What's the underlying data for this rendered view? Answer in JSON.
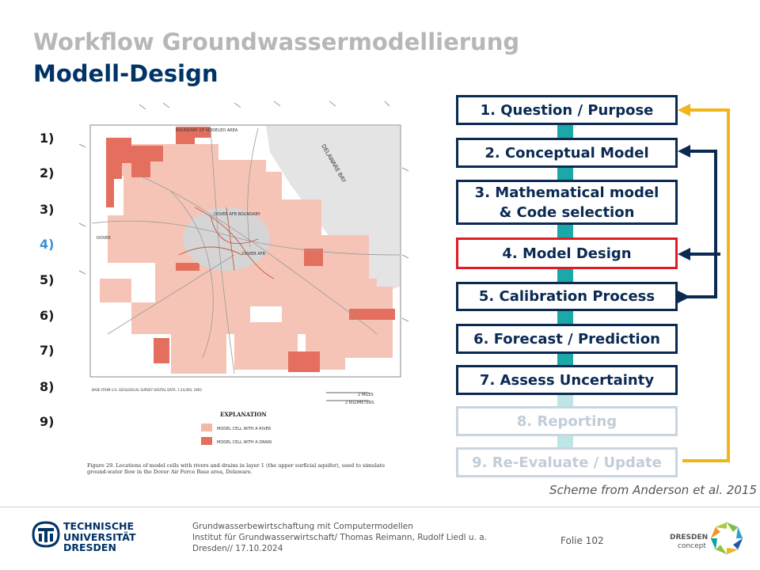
{
  "title": {
    "line1": "Workflow Groundwassermodellierung",
    "line2": "Modell-Design"
  },
  "outline_numbers": [
    {
      "label": "1)",
      "active": false
    },
    {
      "label": "2)",
      "active": false
    },
    {
      "label": "3)",
      "active": false
    },
    {
      "label": "4)",
      "active": true
    },
    {
      "label": "5)",
      "active": false
    },
    {
      "label": "6)",
      "active": false
    },
    {
      "label": "7)",
      "active": false
    },
    {
      "label": "8)",
      "active": false
    },
    {
      "label": "9)",
      "active": false
    }
  ],
  "figure": {
    "map_labels": {
      "boundary": "BOUNDARY OF MODELED AREA",
      "bay": "DELAWARE BAY",
      "dover_afb_boundary": "DOVER AFB BOUNDARY",
      "dover_afb": "DOVER AFB",
      "dover": "DOVER",
      "base_note": "BASE FROM U.S. GEOLOGICAL SURVEY DIGITAL DATA, 1:24,000, 1993",
      "scale_miles": "2 MILES",
      "scale_km": "2 KILOMETERS"
    },
    "explanation_title": "EXPLANATION",
    "legend": [
      {
        "label": "MODEL CELL WITH A RIVER",
        "color": "#f2b7a7"
      },
      {
        "label": "MODEL CELL WITH A DRAIN",
        "color": "#e46f5e"
      }
    ],
    "caption": "Figure 29. Locations of model cells with rivers and drains in layer 1 (the upper surficial aquifer), used to simulate ground-water flow in the Dover Air Force Base area, Delaware."
  },
  "workflow_steps": [
    {
      "label": "1. Question / Purpose",
      "state": "normal"
    },
    {
      "label": "2. Conceptual Model",
      "state": "normal"
    },
    {
      "label": "3. Mathematical model & Code selection",
      "state": "normal"
    },
    {
      "label": "4. Model Design",
      "state": "current"
    },
    {
      "label": "5. Calibration Process",
      "state": "normal"
    },
    {
      "label": "6. Forecast / Prediction",
      "state": "normal"
    },
    {
      "label": "7. Assess Uncertainty",
      "state": "normal"
    },
    {
      "label": "8. Reporting",
      "state": "faded"
    },
    {
      "label": "9. Re-Evaluate / Update",
      "state": "faded"
    }
  ],
  "colors": {
    "navy": "#0b2a52",
    "current_border": "#e01c24",
    "connector_teal": "#1aa8a8",
    "feedback_yellow": "#f2b418"
  },
  "source_caption": "Scheme from Anderson et al. 2015",
  "footer": {
    "university": [
      "TECHNISCHE",
      "UNIVERSITÄT",
      "DRESDEN"
    ],
    "lines": [
      "Grundwasserbewirtschaftung mit Computermodellen",
      "Institut für Grundwasserwirtschaft/ Thomas Reimann, Rudolf Liedl u. a.",
      "Dresden// 17.10.2024"
    ],
    "slide_number": "Folie 102",
    "partner_logo": [
      "DRESDEN",
      "concept"
    ]
  }
}
